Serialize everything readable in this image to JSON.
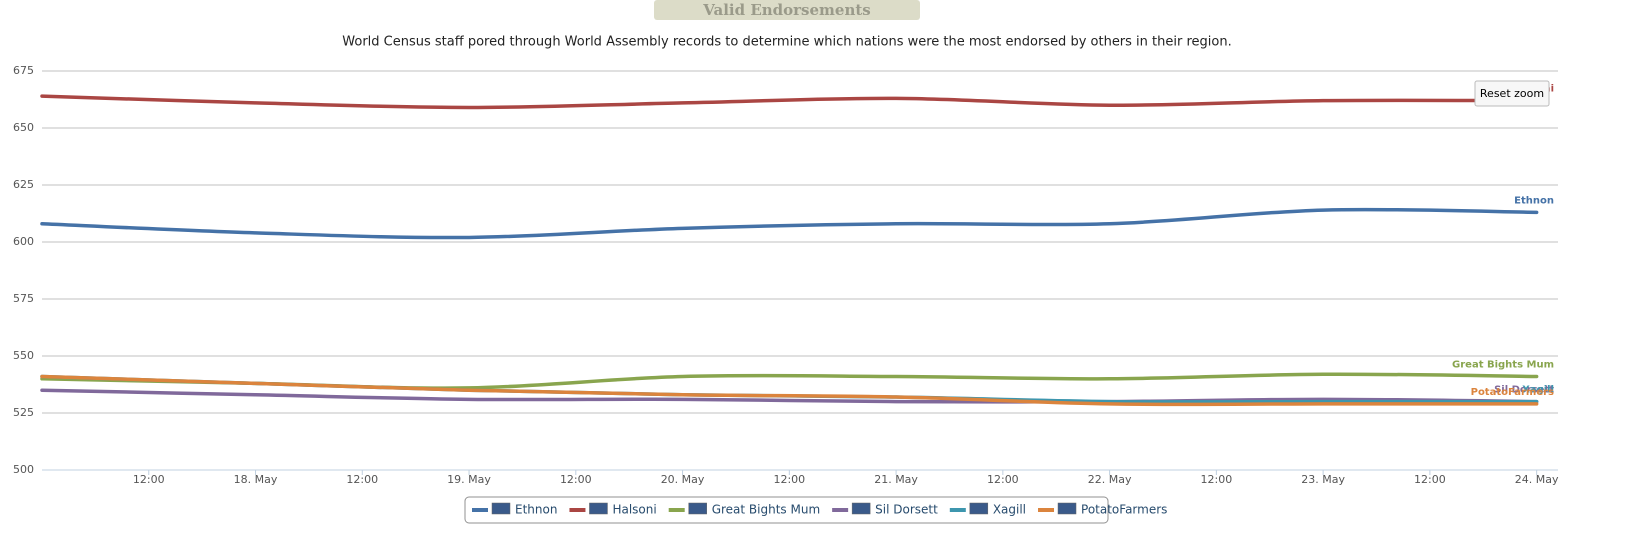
{
  "chart_data": {
    "type": "line",
    "title": "Valid Endorsements",
    "subtitle": "World Census staff pored through World Assembly records to determine which nations were the most endorsed by others in their region.",
    "button": "Reset zoom",
    "x": [
      17,
      18,
      19,
      20,
      21,
      22,
      23,
      24
    ],
    "xlim": [
      17,
      24.1
    ],
    "xticks": [
      {
        "value": 17.5,
        "label": "12:00"
      },
      {
        "value": 18,
        "label": "18. May"
      },
      {
        "value": 18.5,
        "label": "12:00"
      },
      {
        "value": 19,
        "label": "19. May"
      },
      {
        "value": 19.5,
        "label": "12:00"
      },
      {
        "value": 20,
        "label": "20. May"
      },
      {
        "value": 20.5,
        "label": "12:00"
      },
      {
        "value": 21,
        "label": "21. May"
      },
      {
        "value": 21.5,
        "label": "12:00"
      },
      {
        "value": 22,
        "label": "22. May"
      },
      {
        "value": 22.5,
        "label": "12:00"
      },
      {
        "value": 23,
        "label": "23. May"
      },
      {
        "value": 23.5,
        "label": "12:00"
      },
      {
        "value": 24,
        "label": "24. May"
      }
    ],
    "ylim": [
      500,
      675
    ],
    "yticks": [
      500,
      525,
      550,
      575,
      600,
      625,
      650,
      675
    ],
    "grid": true,
    "series": [
      {
        "name": "Ethnon",
        "color": "#4572a7",
        "values": [
          608,
          604,
          602,
          606,
          608,
          608,
          614,
          613
        ]
      },
      {
        "name": "Halsoni",
        "color": "#aa4643",
        "values": [
          664,
          661,
          659,
          661,
          663,
          660,
          662,
          662
        ]
      },
      {
        "name": "Great Bights Mum",
        "color": "#89a54e",
        "values": [
          540,
          538,
          536,
          541,
          541,
          540,
          542,
          541
        ]
      },
      {
        "name": "Sil Dorsett",
        "color": "#80699b",
        "values": [
          535,
          533,
          531,
          531,
          530,
          530,
          531,
          530
        ]
      },
      {
        "name": "Xagill",
        "color": "#3d96ae",
        "values": [
          541,
          538,
          535,
          533,
          532,
          530,
          530,
          530
        ]
      },
      {
        "name": "PotatoFarmers",
        "color": "#db843d",
        "values": [
          541,
          538,
          535,
          533,
          532,
          529,
          529,
          529
        ]
      }
    ]
  }
}
